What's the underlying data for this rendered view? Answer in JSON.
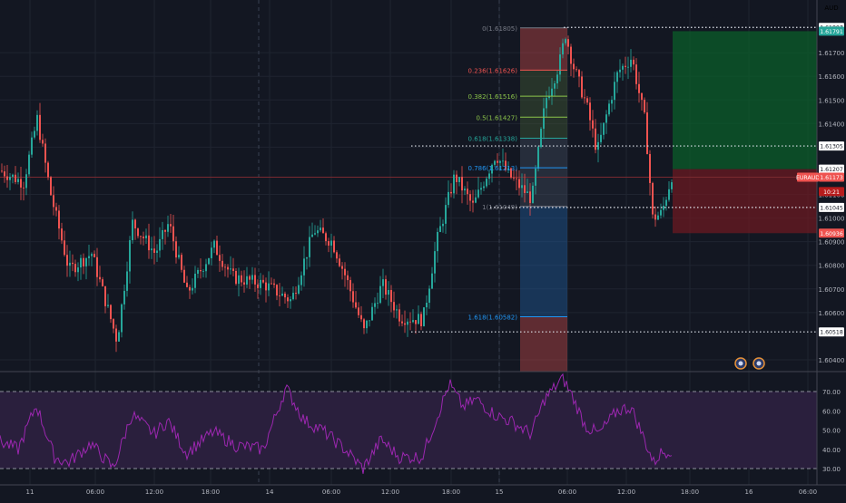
{
  "currency_label": "AUD",
  "colors": {
    "background": "#131722",
    "grid": "#1f2430",
    "up": "#26a69a",
    "down": "#ef5350",
    "rsi_line": "#9c27b0",
    "rsi_band": "#2a1f3d",
    "text": "#b2b5be",
    "fib_red": "#ef5350",
    "fib_green": "#8bc34a",
    "fib_teal": "#26a69a",
    "fib_blue": "#2196f3",
    "fib_gray": "#787b86",
    "price_tag": "#ef5350"
  },
  "chart_data": {
    "type": "candlestick",
    "symbol": "EURAUD",
    "price_axis": {
      "ticks": [
        "1.61700",
        "1.61600",
        "1.61500",
        "1.61400",
        "1.61300",
        "1.61100",
        "1.61000",
        "1.60900",
        "1.60800",
        "1.60700",
        "1.60600",
        "1.60400"
      ],
      "tick_values": [
        1.617,
        1.616,
        1.615,
        1.614,
        1.613,
        1.611,
        1.61,
        1.609,
        1.608,
        1.607,
        1.606,
        1.604
      ],
      "range": [
        1.6035,
        1.619
      ],
      "markers": [
        {
          "label": "1.61807",
          "value": 1.61807,
          "style": "plain"
        },
        {
          "label": "1.61791",
          "value": 1.61791,
          "style": "green"
        },
        {
          "label": "1.61305",
          "value": 1.61305,
          "style": "plain"
        },
        {
          "label": "1.61207",
          "value": 1.61207,
          "style": "plain"
        },
        {
          "label": "EURAUD",
          "value": 1.61173,
          "style": "red-name"
        },
        {
          "label": "1.61173",
          "value": 1.61173,
          "style": "red"
        },
        {
          "label": "10:21",
          "value": 1.61112,
          "style": "red-dark"
        },
        {
          "label": "1.61045",
          "value": 1.61045,
          "style": "plain"
        },
        {
          "label": "1.60936",
          "value": 1.60936,
          "style": "red"
        },
        {
          "label": "1.60518",
          "value": 1.60518,
          "style": "plain"
        }
      ]
    },
    "time_axis": {
      "labels": [
        "11",
        "06:00",
        "12:00",
        "18:00",
        "14",
        "06:00",
        "12:00",
        "18:00",
        "15",
        "06:00",
        "12:00",
        "18:00",
        "16",
        "06:00"
      ]
    },
    "fibonacci": [
      {
        "label": "0(1.61805)",
        "price": 1.61805,
        "color": "fib_gray"
      },
      {
        "label": "0.236(1.61626)",
        "price": 1.61626,
        "color": "fib_red"
      },
      {
        "label": "0.382(1.61516)",
        "price": 1.61516,
        "color": "fib_green"
      },
      {
        "label": "0.5(1.61427)",
        "price": 1.61427,
        "color": "fib_green"
      },
      {
        "label": "0.618(1.61338)",
        "price": 1.61338,
        "color": "fib_teal"
      },
      {
        "label": "0.786(1.61213)",
        "price": 1.61213,
        "color": "fib_blue"
      },
      {
        "label": "1(1.61049)",
        "price": 1.61049,
        "color": "fib_gray"
      },
      {
        "label": "1.618(1.60582)",
        "price": 1.60582,
        "color": "fib_blue"
      }
    ],
    "horizontal_levels": [
      1.61807,
      1.61305,
      1.61045,
      1.60518
    ],
    "position": {
      "entry": 1.61207,
      "target": 1.61791,
      "stop": 1.60936
    },
    "last_price": 1.61173,
    "rsi": {
      "ticks": [
        "70.00",
        "60.00",
        "50.00",
        "40.00",
        "30.00"
      ],
      "tick_values": [
        70,
        60,
        50,
        40,
        30
      ],
      "upper": 70,
      "lower": 30
    },
    "grid": true
  },
  "icons": [
    "event-flag-icon",
    "event-flag-icon"
  ]
}
